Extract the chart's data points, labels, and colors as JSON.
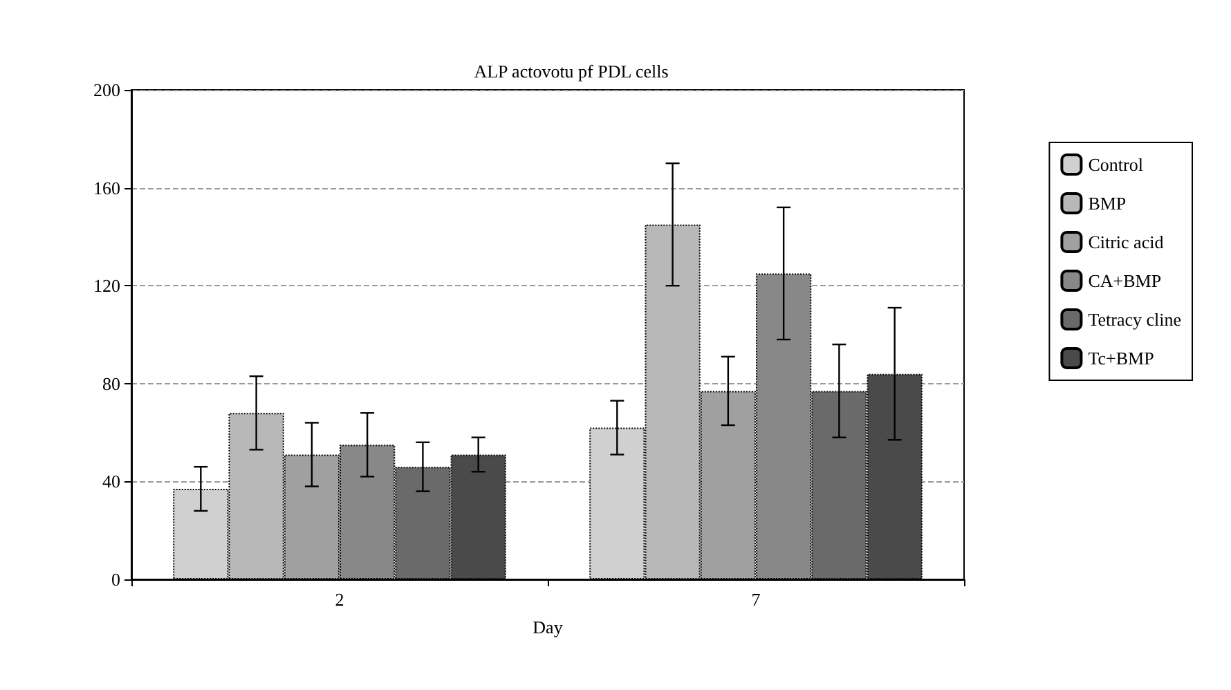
{
  "chart_data": {
    "type": "bar",
    "title": "ALP actovotu pf PDL cells",
    "xlabel": "Day",
    "categories": [
      "2",
      "7"
    ],
    "series": [
      {
        "name": "Control",
        "color": "#d0d0d0",
        "values": [
          37,
          62
        ],
        "errors": [
          9,
          11
        ]
      },
      {
        "name": "BMP",
        "color": "#b8b8b8",
        "values": [
          68,
          145
        ],
        "errors": [
          15,
          25
        ]
      },
      {
        "name": "Citric acid",
        "color": "#a0a0a0",
        "values": [
          51,
          77
        ],
        "errors": [
          13,
          14
        ]
      },
      {
        "name": "CA+BMP",
        "color": "#888888",
        "values": [
          55,
          125
        ],
        "errors": [
          13,
          27
        ]
      },
      {
        "name": "Tetracy cline",
        "color": "#6a6a6a",
        "values": [
          46,
          77
        ],
        "errors": [
          10,
          19
        ]
      },
      {
        "name": "Tc+BMP",
        "color": "#4a4a4a",
        "values": [
          51,
          84
        ],
        "errors": [
          7,
          27
        ]
      }
    ],
    "ylim": [
      0,
      200
    ],
    "yticks": [
      0,
      40,
      80,
      120,
      160,
      200
    ],
    "grid": "y",
    "legend": "right"
  }
}
